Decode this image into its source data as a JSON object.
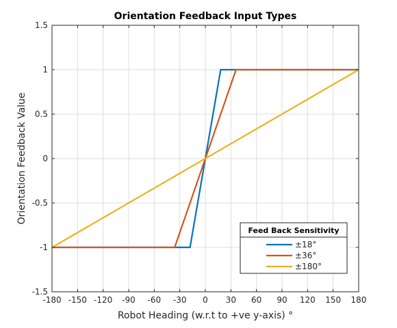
{
  "chart_data": {
    "type": "line",
    "title": "Orientation Feedback Input Types",
    "xlabel": "Robot Heading (w.r.t to +ve y-axis) °",
    "ylabel": "Orientation Feedback Value",
    "xlim": [
      -180,
      180
    ],
    "ylim": [
      -1.5,
      1.5
    ],
    "xticks": [
      -180,
      -150,
      -120,
      -90,
      -60,
      -30,
      0,
      30,
      60,
      90,
      120,
      150,
      180
    ],
    "xtick_labels": [
      "-180",
      "-150",
      "-120",
      "-90",
      "-60",
      "-30",
      "0",
      "30",
      "60",
      "90",
      "120",
      "150",
      "180"
    ],
    "yticks": [
      -1.5,
      -1,
      -0.5,
      0,
      0.5,
      1,
      1.5
    ],
    "ytick_labels": [
      "-1.5",
      "-1",
      "-0.5",
      "0",
      "0.5",
      "1",
      "1.5"
    ],
    "grid": true,
    "legend_title": "Feed Back Sensitivity",
    "legend_position": "bottom-right",
    "series": [
      {
        "name": "±18°",
        "color": "#0072BD",
        "x": [
          -180,
          -18,
          18,
          180
        ],
        "y": [
          -1,
          -1,
          1,
          1
        ]
      },
      {
        "name": "±36°",
        "color": "#D95319",
        "x": [
          -180,
          -36,
          36,
          180
        ],
        "y": [
          -1,
          -1,
          1,
          1
        ]
      },
      {
        "name": "±180°",
        "color": "#EDB120",
        "x": [
          -180,
          180
        ],
        "y": [
          -1,
          1
        ]
      }
    ]
  }
}
